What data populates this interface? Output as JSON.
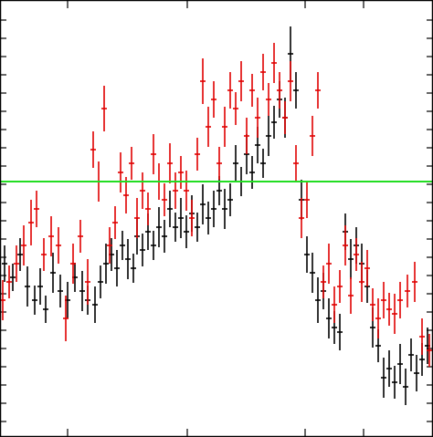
{
  "chart_data": {
    "type": "scatter",
    "title": "",
    "xlabel": "",
    "ylabel": "",
    "xlim": [
      0,
      474
    ],
    "ylim": [
      0,
      479
    ],
    "grid": false,
    "colors": {
      "black": "#000000",
      "red": "#e00000",
      "reference": "#22dd22",
      "frame": "#000000"
    },
    "reference_line": {
      "y": 280
    },
    "x_ticks": [
      74,
      205,
      334,
      398
    ],
    "y_ticks": [
      22,
      42,
      62,
      82,
      102,
      122,
      142,
      162,
      182,
      202,
      222,
      242,
      262,
      282,
      302,
      322,
      342,
      362,
      382,
      402,
      422,
      442,
      462
    ],
    "series": [
      {
        "color": "black",
        "points": [
          [
            5,
            190,
            20
          ],
          [
            14,
            175,
            15
          ],
          [
            22,
            200,
            18
          ],
          [
            30,
            165,
            22
          ],
          [
            38,
            150,
            16
          ],
          [
            44,
            165,
            20
          ],
          [
            50,
            140,
            15
          ],
          [
            58,
            180,
            22
          ],
          [
            66,
            160,
            18
          ],
          [
            74,
            150,
            20
          ],
          [
            82,
            175,
            16
          ],
          [
            90,
            160,
            22
          ],
          [
            96,
            150,
            16
          ],
          [
            104,
            145,
            20
          ],
          [
            110,
            170,
            18
          ],
          [
            116,
            190,
            22
          ],
          [
            122,
            200,
            18
          ],
          [
            128,
            185,
            20
          ],
          [
            134,
            210,
            16
          ],
          [
            140,
            195,
            22
          ],
          [
            146,
            185,
            16
          ],
          [
            150,
            220,
            20
          ],
          [
            156,
            205,
            18
          ],
          [
            162,
            225,
            20
          ],
          [
            168,
            210,
            16
          ],
          [
            174,
            230,
            22
          ],
          [
            180,
            220,
            18
          ],
          [
            186,
            250,
            20
          ],
          [
            192,
            230,
            16
          ],
          [
            198,
            240,
            22
          ],
          [
            204,
            225,
            18
          ],
          [
            210,
            245,
            20
          ],
          [
            216,
            230,
            16
          ],
          [
            222,
            255,
            22
          ],
          [
            228,
            240,
            18
          ],
          [
            234,
            250,
            20
          ],
          [
            240,
            270,
            16
          ],
          [
            246,
            250,
            22
          ],
          [
            252,
            260,
            18
          ],
          [
            258,
            300,
            20
          ],
          [
            264,
            280,
            16
          ],
          [
            270,
            310,
            22
          ],
          [
            276,
            290,
            18
          ],
          [
            282,
            320,
            20
          ],
          [
            288,
            300,
            16
          ],
          [
            294,
            330,
            22
          ],
          [
            300,
            345,
            18
          ],
          [
            306,
            370,
            20
          ],
          [
            312,
            350,
            22
          ],
          [
            318,
            420,
            30
          ],
          [
            324,
            380,
            20
          ],
          [
            330,
            260,
            22
          ],
          [
            336,
            200,
            20
          ],
          [
            342,
            180,
            22
          ],
          [
            348,
            150,
            25
          ],
          [
            354,
            160,
            20
          ],
          [
            360,
            130,
            22
          ],
          [
            366,
            120,
            18
          ],
          [
            372,
            115,
            20
          ],
          [
            378,
            225,
            20
          ],
          [
            384,
            195,
            22
          ],
          [
            390,
            210,
            20
          ],
          [
            396,
            190,
            22
          ],
          [
            402,
            165,
            18
          ],
          [
            408,
            120,
            22
          ],
          [
            414,
            100,
            18
          ],
          [
            420,
            65,
            22
          ],
          [
            426,
            75,
            20
          ],
          [
            432,
            60,
            18
          ],
          [
            438,
            80,
            22
          ],
          [
            444,
            55,
            20
          ],
          [
            450,
            90,
            18
          ],
          [
            456,
            70,
            20
          ],
          [
            462,
            85,
            18
          ],
          [
            468,
            100,
            20
          ]
        ]
      },
      {
        "color": "red",
        "points": [
          [
            3,
            150,
            22
          ],
          [
            10,
            170,
            18
          ],
          [
            18,
            190,
            20
          ],
          [
            26,
            210,
            22
          ],
          [
            34,
            235,
            25
          ],
          [
            40,
            250,
            20
          ],
          [
            48,
            200,
            18
          ],
          [
            56,
            220,
            22
          ],
          [
            64,
            210,
            20
          ],
          [
            72,
            130,
            25
          ],
          [
            80,
            190,
            22
          ],
          [
            88,
            220,
            18
          ],
          [
            96,
            170,
            25
          ],
          [
            102,
            315,
            20
          ],
          [
            108,
            280,
            22
          ],
          [
            114,
            360,
            25
          ],
          [
            120,
            210,
            20
          ],
          [
            126,
            235,
            18
          ],
          [
            132,
            290,
            22
          ],
          [
            138,
            265,
            20
          ],
          [
            144,
            300,
            18
          ],
          [
            150,
            240,
            22
          ],
          [
            156,
            270,
            20
          ],
          [
            162,
            250,
            18
          ],
          [
            168,
            310,
            22
          ],
          [
            174,
            280,
            20
          ],
          [
            180,
            260,
            18
          ],
          [
            186,
            300,
            22
          ],
          [
            192,
            270,
            20
          ],
          [
            198,
            290,
            18
          ],
          [
            204,
            270,
            22
          ],
          [
            210,
            240,
            20
          ],
          [
            216,
            310,
            18
          ],
          [
            222,
            390,
            25
          ],
          [
            228,
            340,
            22
          ],
          [
            234,
            370,
            20
          ],
          [
            240,
            300,
            18
          ],
          [
            246,
            340,
            22
          ],
          [
            252,
            380,
            20
          ],
          [
            258,
            360,
            18
          ],
          [
            264,
            390,
            22
          ],
          [
            270,
            330,
            20
          ],
          [
            276,
            380,
            18
          ],
          [
            282,
            350,
            22
          ],
          [
            288,
            400,
            20
          ],
          [
            294,
            370,
            18
          ],
          [
            300,
            410,
            22
          ],
          [
            306,
            380,
            20
          ],
          [
            312,
            350,
            18
          ],
          [
            318,
            390,
            22
          ],
          [
            324,
            300,
            20
          ],
          [
            330,
            240,
            22
          ],
          [
            336,
            260,
            20
          ],
          [
            342,
            330,
            22
          ],
          [
            348,
            380,
            20
          ],
          [
            354,
            170,
            18
          ],
          [
            360,
            190,
            22
          ],
          [
            366,
            145,
            20
          ],
          [
            372,
            165,
            18
          ],
          [
            378,
            210,
            22
          ],
          [
            384,
            155,
            20
          ],
          [
            390,
            200,
            18
          ],
          [
            396,
            170,
            22
          ],
          [
            402,
            185,
            20
          ],
          [
            408,
            145,
            18
          ],
          [
            414,
            130,
            22
          ],
          [
            420,
            150,
            20
          ],
          [
            426,
            140,
            18
          ],
          [
            432,
            135,
            22
          ],
          [
            438,
            150,
            20
          ],
          [
            446,
            160,
            18
          ],
          [
            454,
            170,
            22
          ],
          [
            462,
            110,
            20
          ],
          [
            470,
            95,
            18
          ]
        ]
      }
    ]
  }
}
